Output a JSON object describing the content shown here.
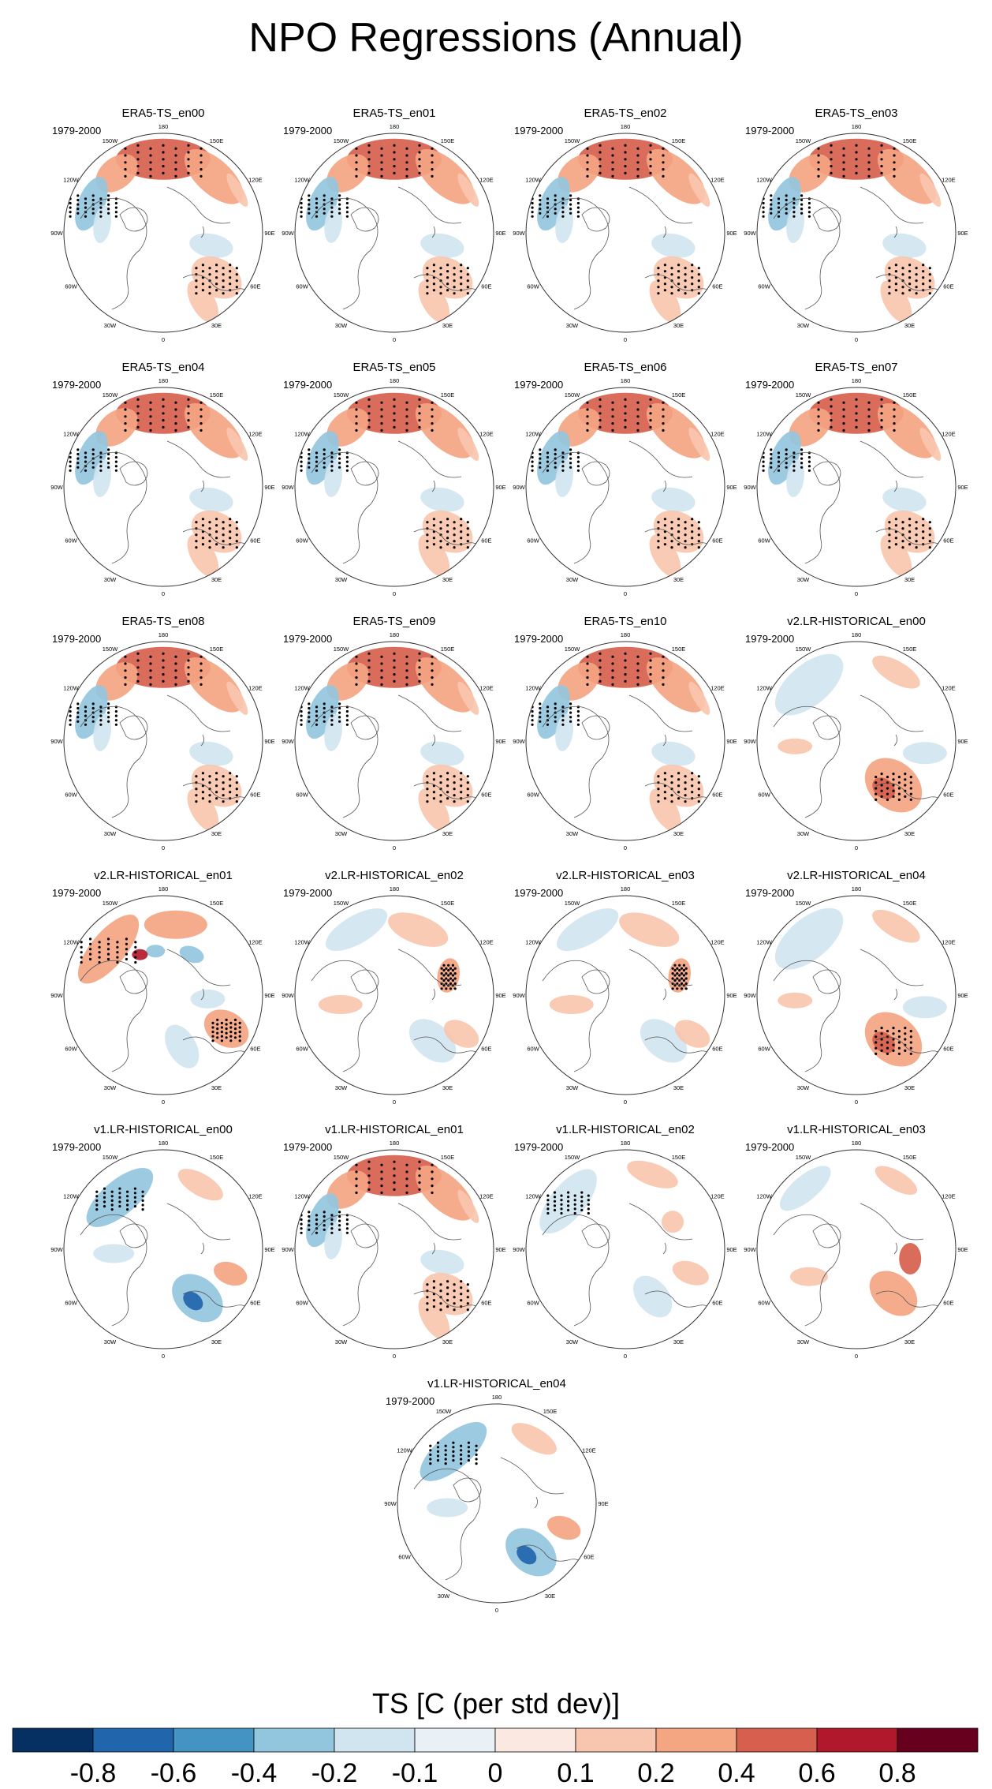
{
  "figure": {
    "title": "NPO Regressions (Annual)",
    "period": "1979-2000"
  },
  "longitude_labels": [
    "180",
    "150E",
    "120E",
    "90E",
    "60E",
    "30E",
    "0",
    "30W",
    "60W",
    "90W",
    "120W",
    "150W"
  ],
  "chart_data": {
    "type": "heatmap",
    "projection": "north polar stereographic",
    "variable": "TS",
    "units": "C (per std dev)",
    "colorbar": {
      "label": "TS [C (per std dev)]",
      "levels": [
        -0.8,
        -0.6,
        -0.4,
        -0.2,
        -0.1,
        0,
        0.1,
        0.2,
        0.4,
        0.6,
        0.8
      ],
      "tick_labels": [
        "-0.8",
        "-0.6",
        "-0.4",
        "-0.2",
        "-0.1",
        "0",
        "0.1",
        "0.2",
        "0.4",
        "0.6",
        "0.8"
      ],
      "colors": [
        "#053061",
        "#2166ac",
        "#4393c3",
        "#92c5de",
        "#d1e5f0",
        "#eaf1f6",
        "#fbe8e0",
        "#f8c6ae",
        "#f4a582",
        "#d6604d",
        "#b2182b",
        "#67001f"
      ]
    },
    "panels": [
      {
        "title": "ERA5-TS_en00",
        "pattern": "era5"
      },
      {
        "title": "ERA5-TS_en01",
        "pattern": "era5"
      },
      {
        "title": "ERA5-TS_en02",
        "pattern": "era5"
      },
      {
        "title": "ERA5-TS_en03",
        "pattern": "era5"
      },
      {
        "title": "ERA5-TS_en04",
        "pattern": "era5"
      },
      {
        "title": "ERA5-TS_en05",
        "pattern": "era5"
      },
      {
        "title": "ERA5-TS_en06",
        "pattern": "era5"
      },
      {
        "title": "ERA5-TS_en07",
        "pattern": "era5"
      },
      {
        "title": "ERA5-TS_en08",
        "pattern": "era5"
      },
      {
        "title": "ERA5-TS_en09",
        "pattern": "era5"
      },
      {
        "title": "ERA5-TS_en10",
        "pattern": "era5"
      },
      {
        "title": "v2.LR-HISTORICAL_en00",
        "pattern": "v2a"
      },
      {
        "title": "v2.LR-HISTORICAL_en01",
        "pattern": "v2b"
      },
      {
        "title": "v2.LR-HISTORICAL_en02",
        "pattern": "v2c"
      },
      {
        "title": "v2.LR-HISTORICAL_en03",
        "pattern": "v2c"
      },
      {
        "title": "v2.LR-HISTORICAL_en04",
        "pattern": "v2a"
      },
      {
        "title": "v1.LR-HISTORICAL_en00",
        "pattern": "v1a"
      },
      {
        "title": "v1.LR-HISTORICAL_en01",
        "pattern": "era5"
      },
      {
        "title": "v1.LR-HISTORICAL_en02",
        "pattern": "v1c"
      },
      {
        "title": "v1.LR-HISTORICAL_en03",
        "pattern": "v1d"
      },
      {
        "title": "v1.LR-HISTORICAL_en04",
        "pattern": "v1a"
      }
    ]
  }
}
